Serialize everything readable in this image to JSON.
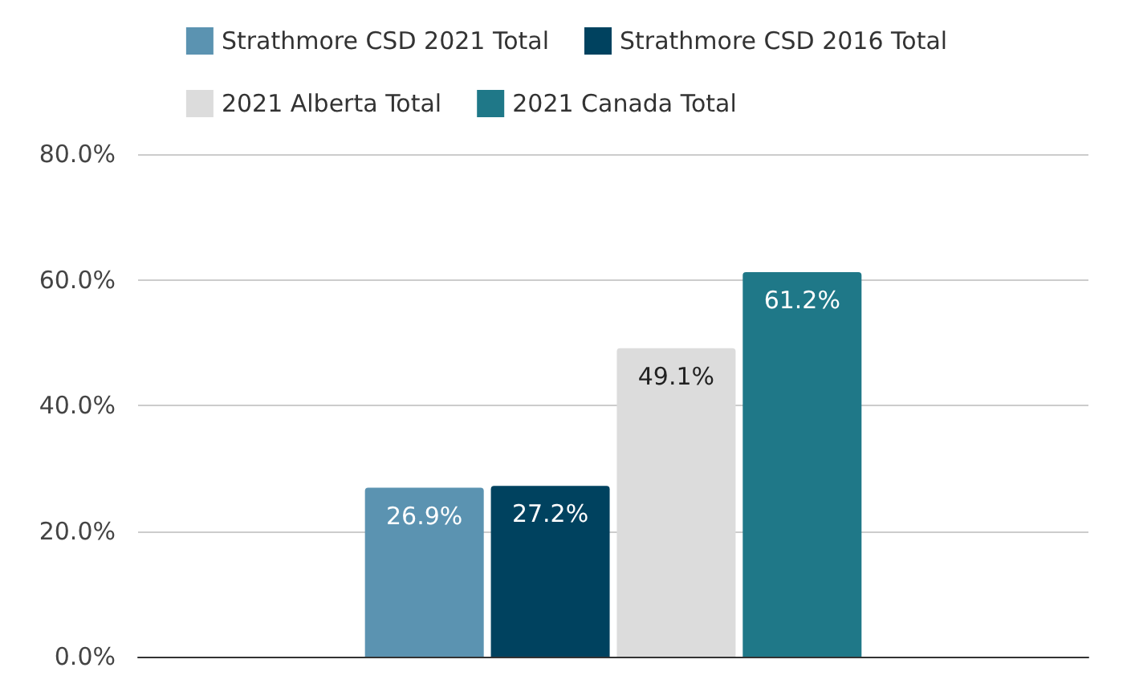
{
  "chart_data": {
    "type": "bar",
    "categories": [
      null
    ],
    "series": [
      {
        "name": "Strathmore CSD 2021 Total",
        "color": "#5b93b1",
        "values": [
          26.9
        ],
        "value_labels": [
          "26.9%"
        ]
      },
      {
        "name": "Strathmore CSD 2016 Total",
        "color": "#00425f",
        "values": [
          27.2
        ],
        "value_labels": [
          "27.2%"
        ]
      },
      {
        "name": "2021 Alberta Total",
        "color": "#dcdcdc",
        "values": [
          49.1
        ],
        "value_labels": [
          "49.1%"
        ]
      },
      {
        "name": "2021 Canada Total",
        "color": "#1f7888",
        "values": [
          61.2
        ],
        "value_labels": [
          "61.2%"
        ]
      }
    ],
    "ylim": [
      0,
      80
    ],
    "yticks": [
      {
        "value": 0,
        "label": "0.0%"
      },
      {
        "value": 20,
        "label": "20.0%"
      },
      {
        "value": 40,
        "label": "40.0%"
      },
      {
        "value": 60,
        "label": "60.0%"
      },
      {
        "value": 80,
        "label": "80.0%"
      }
    ],
    "grid": "y",
    "legend": "top"
  }
}
